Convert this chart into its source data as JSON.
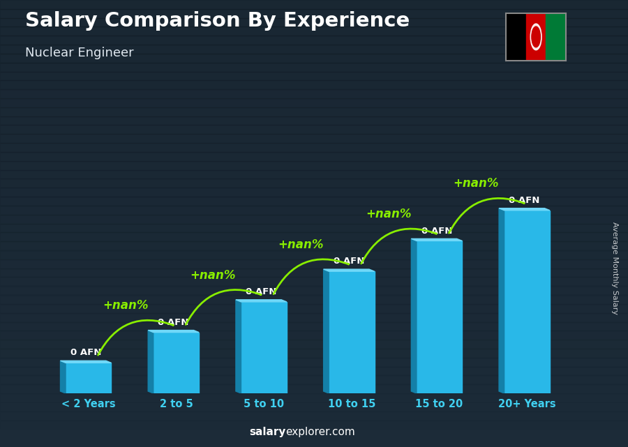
{
  "title": "Salary Comparison By Experience",
  "subtitle": "Nuclear Engineer",
  "categories": [
    "< 2 Years",
    "2 to 5",
    "5 to 10",
    "10 to 15",
    "15 to 20",
    "20+ Years"
  ],
  "values": [
    1,
    2,
    3,
    4,
    5,
    6
  ],
  "bar_color_main": "#29b8e8",
  "bar_color_dark": "#1480a8",
  "bar_color_light": "#70d8f8",
  "bar_top_color": "#45c8f0",
  "value_labels": [
    "0 AFN",
    "0 AFN",
    "0 AFN",
    "0 AFN",
    "0 AFN",
    "0 AFN"
  ],
  "pct_labels": [
    "+nan%",
    "+nan%",
    "+nan%",
    "+nan%",
    "+nan%"
  ],
  "ylabel": "Average Monthly Salary",
  "watermark_bold": "salary",
  "watermark_normal": "explorer.com",
  "background_color": "#1c2b38",
  "title_color": "#ffffff",
  "subtitle_color": "#e0e8f0",
  "label_color": "#40d0f0",
  "pct_color": "#88ee00",
  "bar_value_color": "#ffffff",
  "arrow_color": "#88ee00",
  "ylim": [
    0,
    8.5
  ],
  "bar_width": 0.52,
  "flag_colors": [
    "#000000",
    "#CC0000",
    "#007A36"
  ]
}
